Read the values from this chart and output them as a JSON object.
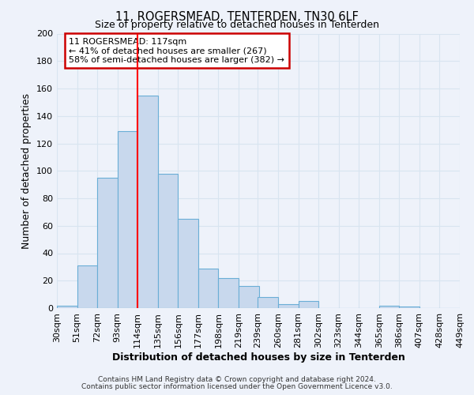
{
  "title": "11, ROGERSMEAD, TENTERDEN, TN30 6LF",
  "subtitle": "Size of property relative to detached houses in Tenterden",
  "xlabel": "Distribution of detached houses by size in Tenterden",
  "ylabel": "Number of detached properties",
  "bin_labels": [
    "30sqm",
    "51sqm",
    "72sqm",
    "93sqm",
    "114sqm",
    "135sqm",
    "156sqm",
    "177sqm",
    "198sqm",
    "219sqm",
    "239sqm",
    "260sqm",
    "281sqm",
    "302sqm",
    "323sqm",
    "344sqm",
    "365sqm",
    "386sqm",
    "407sqm",
    "428sqm",
    "449sqm"
  ],
  "bin_edges": [
    30,
    51,
    72,
    93,
    114,
    135,
    156,
    177,
    198,
    219,
    239,
    260,
    281,
    302,
    323,
    344,
    365,
    386,
    407,
    428,
    449
  ],
  "bar_heights": [
    2,
    31,
    95,
    129,
    155,
    98,
    65,
    29,
    22,
    16,
    8,
    3,
    5,
    0,
    0,
    0,
    2,
    1,
    0,
    0
  ],
  "bar_color": "#c8d8ed",
  "bar_edge_color": "#6aaed6",
  "ylim": [
    0,
    200
  ],
  "yticks": [
    0,
    20,
    40,
    60,
    80,
    100,
    120,
    140,
    160,
    180,
    200
  ],
  "red_line_x": 114,
  "annotation_title": "11 ROGERSMEAD: 117sqm",
  "annotation_line1": "← 41% of detached houses are smaller (267)",
  "annotation_line2": "58% of semi-detached houses are larger (382) →",
  "annotation_box_color": "#ffffff",
  "annotation_box_edge_color": "#cc0000",
  "footer_line1": "Contains HM Land Registry data © Crown copyright and database right 2024.",
  "footer_line2": "Contains public sector information licensed under the Open Government Licence v3.0.",
  "background_color": "#eef2fa",
  "grid_color": "#d8e4f0"
}
